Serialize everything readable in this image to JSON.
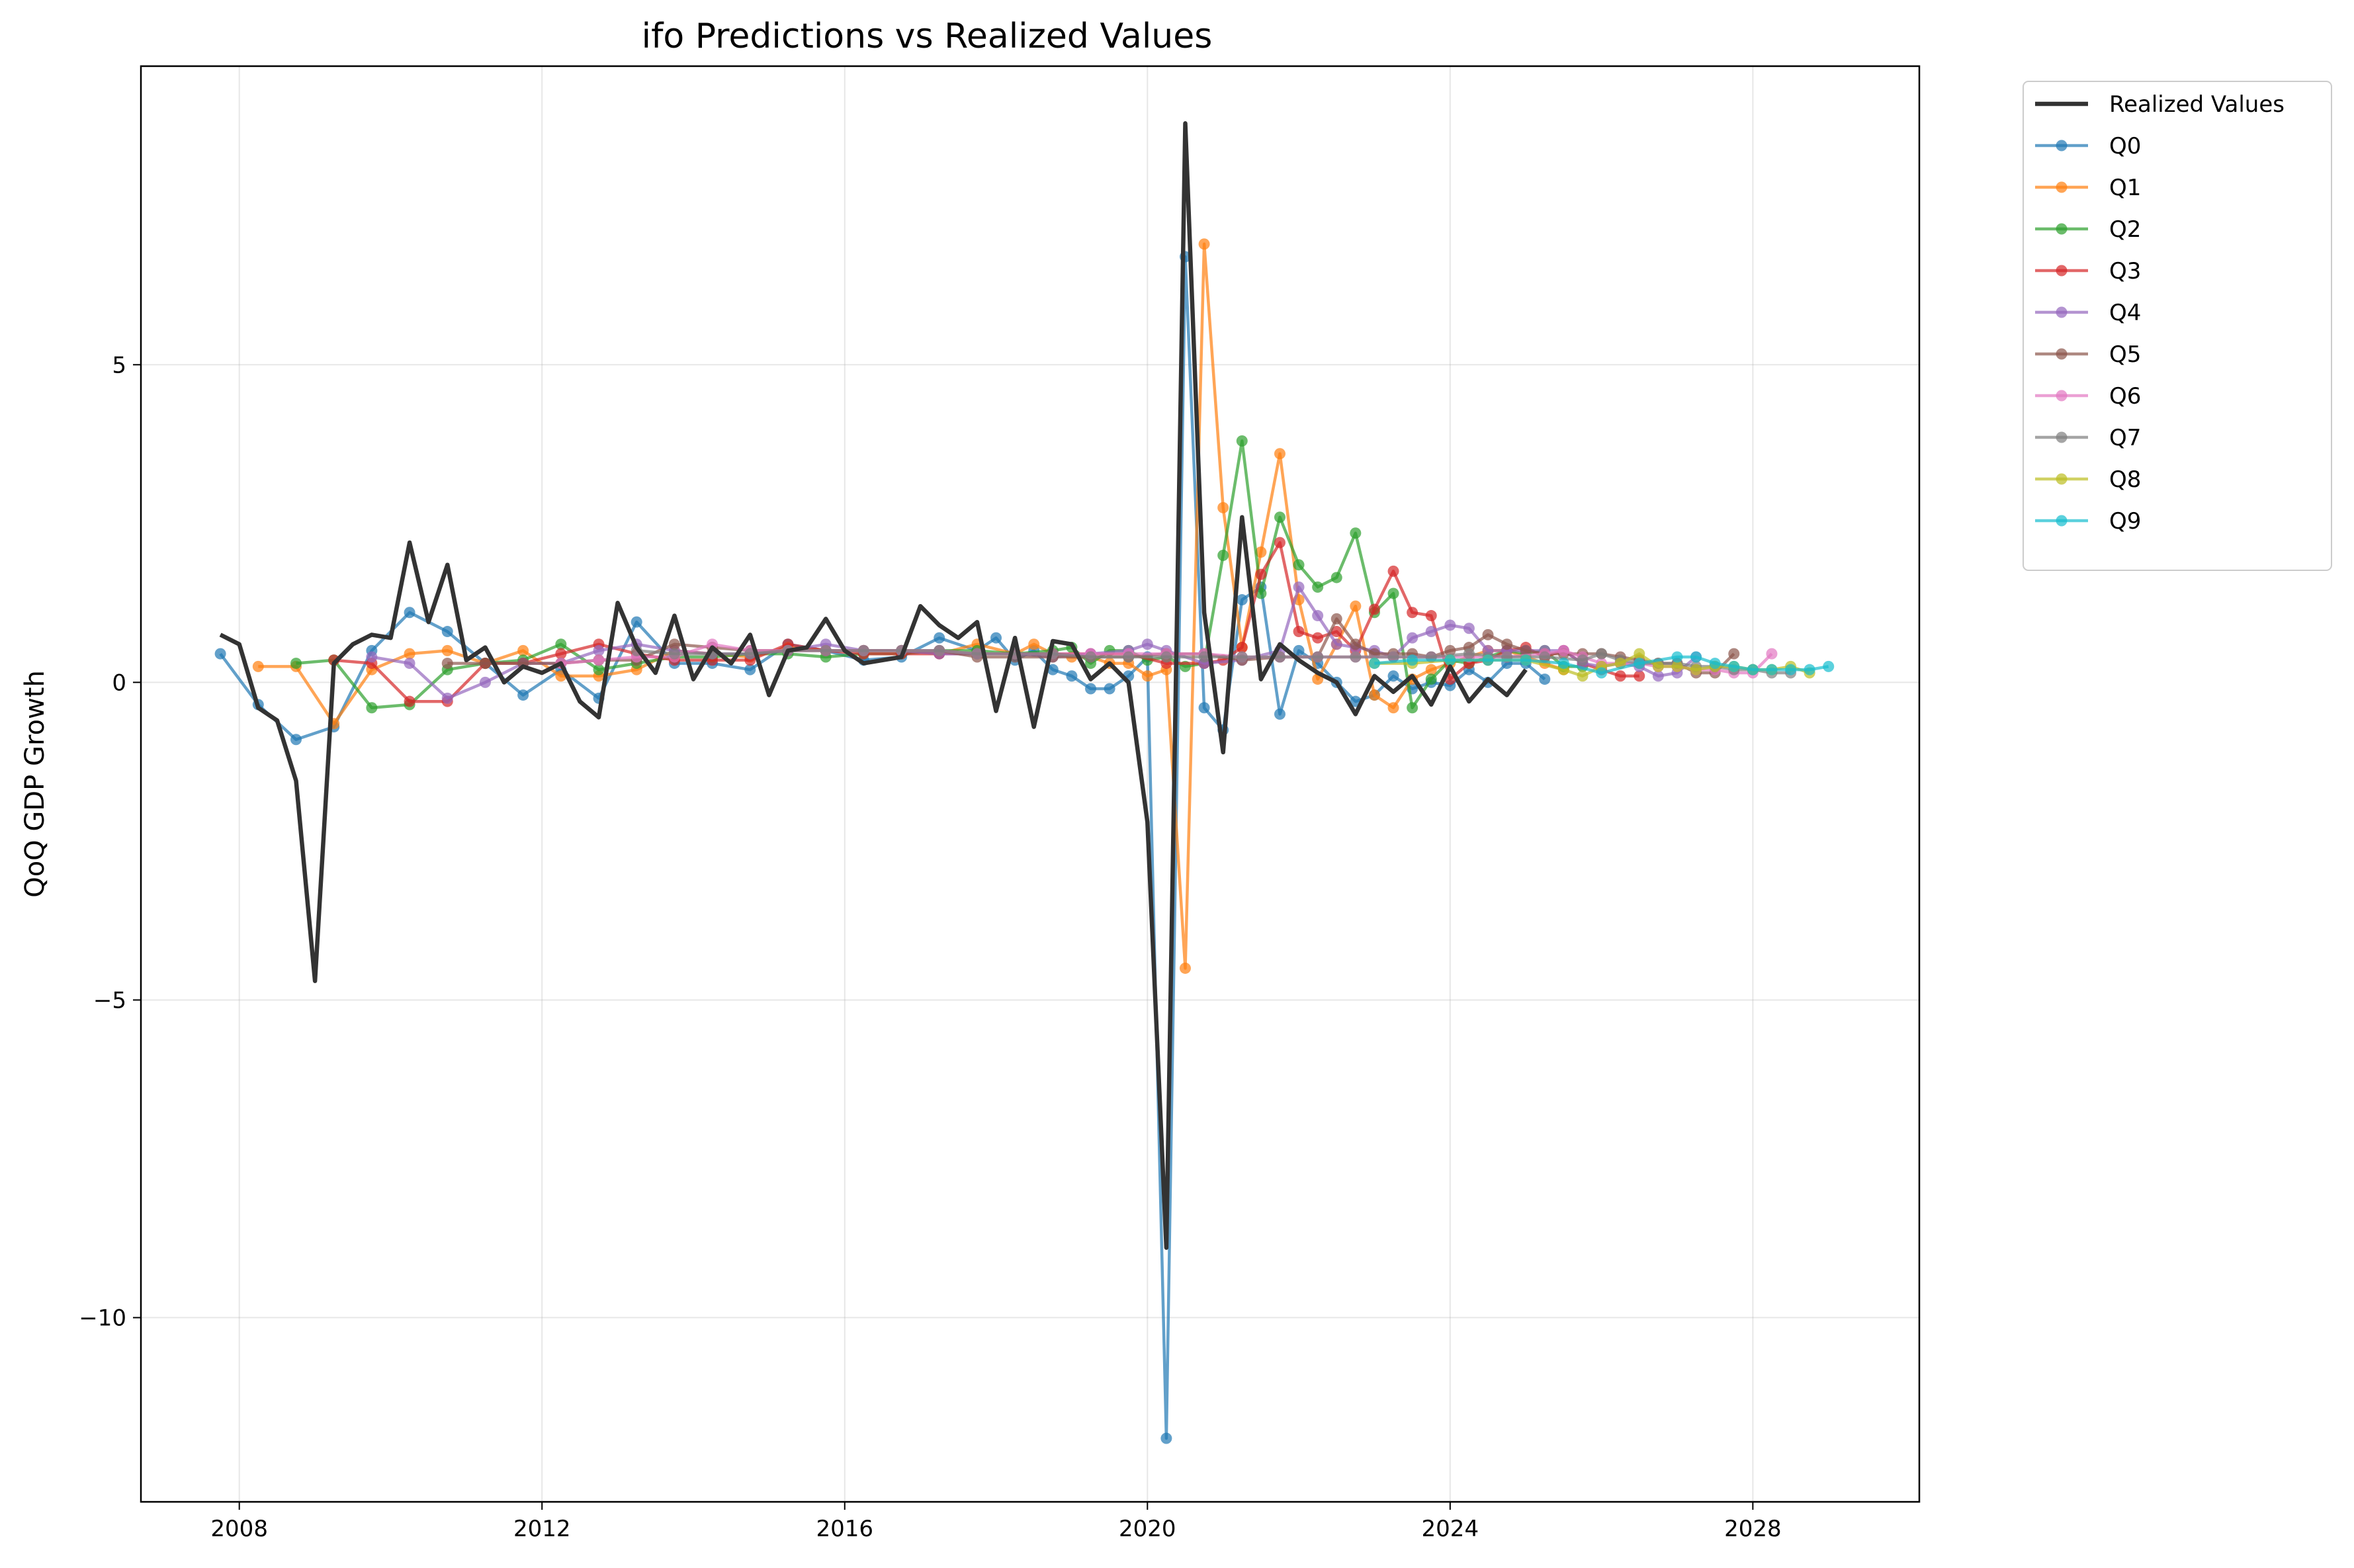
{
  "chart_data": {
    "type": "line",
    "title": "ifo Predictions vs Realized Values",
    "xlabel": "",
    "ylabel": "QoQ GDP Growth",
    "xlim": [
      2006.7,
      2030.2
    ],
    "ylim": [
      -12.9,
      9.7
    ],
    "xticks": [
      2008,
      2012,
      2016,
      2020,
      2024,
      2028
    ],
    "yticks": [
      {
        "value": -10,
        "label": "−10"
      },
      {
        "value": -5,
        "label": "−5"
      },
      {
        "value": 0,
        "label": "0"
      },
      {
        "value": 5,
        "label": "5"
      }
    ],
    "grid": true,
    "legend_position": "outside-top-right",
    "realized": {
      "name": "Realized Values",
      "color": "#333333",
      "x": [
        2007.75,
        2008.0,
        2008.25,
        2008.5,
        2008.75,
        2009.0,
        2009.25,
        2009.5,
        2009.75,
        2010.0,
        2010.25,
        2010.5,
        2010.75,
        2011.0,
        2011.25,
        2011.5,
        2011.75,
        2012.0,
        2012.25,
        2012.5,
        2012.75,
        2013.0,
        2013.25,
        2013.5,
        2013.75,
        2014.0,
        2014.25,
        2014.5,
        2014.75,
        2015.0,
        2015.25,
        2015.5,
        2015.75,
        2016.0,
        2016.25,
        2016.5,
        2016.75,
        2017.0,
        2017.25,
        2017.5,
        2017.75,
        2018.0,
        2018.25,
        2018.5,
        2018.75,
        2019.0,
        2019.25,
        2019.5,
        2019.75,
        2020.0,
        2020.25,
        2020.5,
        2020.75,
        2021.0,
        2021.25,
        2021.5,
        2021.75,
        2022.0,
        2022.25,
        2022.5,
        2022.75,
        2023.0,
        2023.25,
        2023.5,
        2023.75,
        2024.0,
        2024.25,
        2024.5,
        2024.75,
        2025.0
      ],
      "values": [
        0.75,
        0.6,
        -0.4,
        -0.6,
        -1.55,
        -4.7,
        0.3,
        0.6,
        0.75,
        0.7,
        2.2,
        0.95,
        1.85,
        0.35,
        0.55,
        0.0,
        0.25,
        0.15,
        0.3,
        -0.3,
        -0.55,
        1.25,
        0.55,
        0.15,
        1.05,
        0.05,
        0.55,
        0.3,
        0.75,
        -0.2,
        0.5,
        0.55,
        1.0,
        0.5,
        0.3,
        0.35,
        0.4,
        1.2,
        0.9,
        0.7,
        0.95,
        -0.45,
        0.7,
        -0.7,
        0.65,
        0.6,
        0.05,
        0.3,
        0.0,
        -2.2,
        -8.9,
        8.8,
        1.1,
        -1.1,
        2.6,
        0.05,
        0.6,
        0.35,
        0.15,
        0.0,
        -0.5,
        0.1,
        -0.15,
        0.1,
        -0.35,
        0.25,
        -0.3,
        0.05,
        -0.2,
        0.2
      ]
    },
    "series": [
      {
        "name": "Q0",
        "color": "#1f77b4",
        "x": [
          2007.75,
          2008.25,
          2008.75,
          2009.25,
          2009.75,
          2010.25,
          2010.75,
          2011.25,
          2011.75,
          2012.25,
          2012.75,
          2013.25,
          2013.75,
          2014.25,
          2014.75,
          2015.25,
          2015.75,
          2016.25,
          2016.75,
          2017.25,
          2017.75,
          2018.0,
          2018.25,
          2018.5,
          2018.75,
          2019.0,
          2019.25,
          2019.5,
          2019.75,
          2020.0,
          2020.25,
          2020.5,
          2020.75,
          2021.0,
          2021.25,
          2021.5,
          2021.75,
          2022.0,
          2022.25,
          2022.5,
          2022.75,
          2023.0,
          2023.25,
          2023.5,
          2023.75,
          2024.0,
          2024.25,
          2024.5,
          2024.75,
          2025.0,
          2025.25
        ],
        "values": [
          0.45,
          -0.35,
          -0.9,
          -0.7,
          0.5,
          1.1,
          0.8,
          0.3,
          -0.2,
          0.2,
          -0.25,
          0.95,
          0.3,
          0.3,
          0.2,
          0.6,
          0.5,
          0.35,
          0.4,
          0.7,
          0.5,
          0.7,
          0.35,
          0.5,
          0.2,
          0.1,
          -0.1,
          -0.1,
          0.1,
          0.4,
          -11.9,
          6.7,
          -0.4,
          -0.75,
          1.3,
          1.5,
          -0.5,
          0.5,
          0.3,
          0.0,
          -0.3,
          -0.2,
          0.1,
          -0.1,
          0.0,
          -0.05,
          0.2,
          0.0,
          0.3,
          0.3,
          0.05
        ]
      },
      {
        "name": "Q1",
        "color": "#ff7f0e",
        "x": [
          2008.25,
          2008.75,
          2009.25,
          2009.75,
          2010.25,
          2010.75,
          2011.25,
          2011.75,
          2012.25,
          2012.75,
          2013.25,
          2013.75,
          2014.25,
          2014.75,
          2015.25,
          2015.75,
          2016.25,
          2016.75,
          2017.25,
          2017.75,
          2018.25,
          2018.5,
          2018.75,
          2019.0,
          2019.25,
          2019.5,
          2019.75,
          2020.0,
          2020.25,
          2020.5,
          2020.75,
          2021.0,
          2021.25,
          2021.5,
          2021.75,
          2022.0,
          2022.25,
          2022.5,
          2022.75,
          2023.0,
          2023.25,
          2023.5,
          2023.75,
          2024.0,
          2024.25,
          2024.5,
          2024.75,
          2025.0,
          2025.25,
          2025.5
        ],
        "values": [
          0.25,
          0.25,
          -0.65,
          0.2,
          0.45,
          0.5,
          0.3,
          0.5,
          0.1,
          0.1,
          0.2,
          0.5,
          0.45,
          0.4,
          0.55,
          0.5,
          0.5,
          0.5,
          0.45,
          0.6,
          0.45,
          0.6,
          0.45,
          0.4,
          0.4,
          0.3,
          0.3,
          0.1,
          0.2,
          -4.5,
          6.9,
          2.75,
          0.55,
          2.05,
          3.6,
          1.3,
          0.05,
          0.6,
          1.2,
          -0.2,
          -0.4,
          0.05,
          0.2,
          0.3,
          0.4,
          0.5,
          0.5,
          0.4,
          0.3,
          0.2
        ]
      },
      {
        "name": "Q2",
        "color": "#2ca02c",
        "x": [
          2008.75,
          2009.25,
          2009.75,
          2010.25,
          2010.75,
          2011.25,
          2011.75,
          2012.25,
          2012.75,
          2013.25,
          2013.75,
          2014.25,
          2014.75,
          2015.25,
          2015.75,
          2016.25,
          2016.75,
          2017.25,
          2017.75,
          2018.25,
          2018.75,
          2019.0,
          2019.25,
          2019.5,
          2019.75,
          2020.0,
          2020.25,
          2020.5,
          2020.75,
          2021.0,
          2021.25,
          2021.5,
          2021.75,
          2022.0,
          2022.25,
          2022.5,
          2022.75,
          2023.0,
          2023.25,
          2023.5,
          2023.75,
          2024.0,
          2024.25,
          2024.5,
          2024.75,
          2025.0,
          2025.25,
          2025.5,
          2025.75
        ],
        "values": [
          0.3,
          0.35,
          -0.4,
          -0.35,
          0.2,
          0.3,
          0.35,
          0.6,
          0.2,
          0.3,
          0.4,
          0.4,
          0.45,
          0.45,
          0.4,
          0.45,
          0.45,
          0.5,
          0.5,
          0.45,
          0.5,
          0.55,
          0.3,
          0.5,
          0.5,
          0.35,
          0.4,
          0.25,
          0.3,
          2.0,
          3.8,
          1.4,
          2.6,
          1.85,
          1.5,
          1.65,
          2.35,
          1.1,
          1.4,
          -0.4,
          0.05,
          0.35,
          0.3,
          0.4,
          0.5,
          0.45,
          0.5,
          0.25,
          0.25
        ]
      },
      {
        "name": "Q3",
        "color": "#d62728",
        "x": [
          2009.25,
          2009.75,
          2010.25,
          2010.75,
          2011.25,
          2011.75,
          2012.25,
          2012.75,
          2013.25,
          2013.75,
          2014.25,
          2014.75,
          2015.25,
          2015.75,
          2016.25,
          2016.75,
          2017.25,
          2017.75,
          2018.25,
          2018.75,
          2019.25,
          2019.75,
          2020.25,
          2020.75,
          2021.0,
          2021.25,
          2021.5,
          2021.75,
          2022.0,
          2022.25,
          2022.5,
          2022.75,
          2023.0,
          2023.25,
          2023.5,
          2023.75,
          2024.0,
          2024.25,
          2024.5,
          2024.75,
          2025.0,
          2025.25,
          2025.5,
          2025.75,
          2026.0,
          2026.25,
          2026.5
        ],
        "values": [
          0.35,
          0.3,
          -0.3,
          -0.3,
          0.3,
          0.3,
          0.45,
          0.6,
          0.45,
          0.35,
          0.35,
          0.35,
          0.6,
          0.5,
          0.45,
          0.45,
          0.45,
          0.45,
          0.45,
          0.45,
          0.45,
          0.45,
          0.3,
          0.3,
          0.35,
          0.55,
          1.7,
          2.2,
          0.8,
          0.7,
          0.8,
          0.5,
          1.15,
          1.75,
          1.1,
          1.05,
          0.05,
          0.3,
          0.35,
          0.5,
          0.55,
          0.4,
          0.5,
          0.3,
          0.2,
          0.1,
          0.1
        ]
      },
      {
        "name": "Q4",
        "color": "#9467bd",
        "x": [
          2009.75,
          2010.25,
          2010.75,
          2011.25,
          2011.75,
          2012.25,
          2012.75,
          2013.25,
          2013.75,
          2014.25,
          2014.75,
          2015.25,
          2015.75,
          2016.25,
          2016.75,
          2017.25,
          2017.75,
          2018.25,
          2018.75,
          2019.25,
          2019.75,
          2020.0,
          2020.25,
          2020.75,
          2021.25,
          2021.75,
          2022.0,
          2022.25,
          2022.5,
          2022.75,
          2023.0,
          2023.25,
          2023.5,
          2023.75,
          2024.0,
          2024.25,
          2024.5,
          2024.75,
          2025.0,
          2025.25,
          2025.5,
          2025.75,
          2026.0,
          2026.25,
          2026.5,
          2026.75,
          2027.0,
          2027.25
        ],
        "values": [
          0.4,
          0.3,
          -0.25,
          0.0,
          0.3,
          0.3,
          0.5,
          0.6,
          0.5,
          0.45,
          0.45,
          0.5,
          0.6,
          0.5,
          0.5,
          0.45,
          0.45,
          0.45,
          0.4,
          0.45,
          0.5,
          0.6,
          0.5,
          0.3,
          0.35,
          0.5,
          1.5,
          1.05,
          0.6,
          0.55,
          0.5,
          0.4,
          0.7,
          0.8,
          0.9,
          0.85,
          0.5,
          0.5,
          0.5,
          0.5,
          0.5,
          0.3,
          0.25,
          0.3,
          0.25,
          0.1,
          0.15,
          0.4
        ]
      },
      {
        "name": "Q5",
        "color": "#8c564b",
        "x": [
          2010.75,
          2011.25,
          2011.75,
          2012.25,
          2012.75,
          2013.25,
          2013.75,
          2014.25,
          2014.75,
          2015.25,
          2015.75,
          2016.25,
          2016.75,
          2017.25,
          2017.75,
          2018.25,
          2018.75,
          2019.25,
          2019.75,
          2020.25,
          2020.75,
          2021.25,
          2021.75,
          2022.25,
          2022.5,
          2022.75,
          2023.0,
          2023.25,
          2023.5,
          2023.75,
          2024.0,
          2024.25,
          2024.5,
          2024.75,
          2025.0,
          2025.25,
          2025.5,
          2025.75,
          2026.0,
          2026.25,
          2026.5,
          2026.75,
          2027.0,
          2027.25,
          2027.5,
          2027.75
        ],
        "values": [
          0.3,
          0.3,
          0.3,
          0.3,
          0.35,
          0.35,
          0.6,
          0.55,
          0.5,
          0.5,
          0.5,
          0.5,
          0.5,
          0.5,
          0.4,
          0.4,
          0.4,
          0.4,
          0.4,
          0.45,
          0.45,
          0.35,
          0.4,
          0.4,
          1.0,
          0.6,
          0.45,
          0.45,
          0.45,
          0.4,
          0.5,
          0.55,
          0.75,
          0.6,
          0.5,
          0.45,
          0.45,
          0.45,
          0.45,
          0.4,
          0.35,
          0.3,
          0.3,
          0.15,
          0.15,
          0.45
        ]
      },
      {
        "name": "Q6",
        "color": "#e377c2",
        "x": [
          2012.25,
          2012.75,
          2013.25,
          2013.75,
          2014.25,
          2014.75,
          2015.25,
          2015.75,
          2016.25,
          2016.75,
          2017.25,
          2017.75,
          2018.25,
          2018.75,
          2019.25,
          2019.75,
          2020.25,
          2020.75,
          2021.25,
          2021.75,
          2022.25,
          2022.75,
          2023.25,
          2023.75,
          2024.25,
          2024.75,
          2025.25,
          2025.5,
          2025.75,
          2026.0,
          2026.25,
          2026.5,
          2026.75,
          2027.0,
          2027.25,
          2027.5,
          2027.75,
          2028.0,
          2028.25
        ],
        "values": [
          0.3,
          0.35,
          0.4,
          0.4,
          0.6,
          0.5,
          0.5,
          0.5,
          0.5,
          0.5,
          0.5,
          0.45,
          0.45,
          0.45,
          0.45,
          0.45,
          0.45,
          0.45,
          0.4,
          0.4,
          0.4,
          0.4,
          0.4,
          0.4,
          0.4,
          0.4,
          0.45,
          0.5,
          0.4,
          0.3,
          0.3,
          0.3,
          0.25,
          0.25,
          0.2,
          0.2,
          0.15,
          0.15,
          0.45
        ]
      },
      {
        "name": "Q7",
        "color": "#7f7f7f",
        "x": [
          2013.25,
          2013.75,
          2014.25,
          2014.75,
          2015.25,
          2015.75,
          2016.25,
          2016.75,
          2017.25,
          2017.75,
          2018.25,
          2018.75,
          2019.25,
          2019.75,
          2020.25,
          2020.75,
          2021.25,
          2021.75,
          2022.25,
          2022.75,
          2023.25,
          2023.75,
          2024.25,
          2024.75,
          2025.25,
          2025.75,
          2026.0,
          2026.25,
          2026.5,
          2026.75,
          2027.0,
          2027.25,
          2027.5,
          2027.75,
          2028.0,
          2028.25,
          2028.5
        ],
        "values": [
          0.5,
          0.45,
          0.45,
          0.45,
          0.5,
          0.5,
          0.5,
          0.5,
          0.5,
          0.45,
          0.45,
          0.45,
          0.4,
          0.4,
          0.4,
          0.4,
          0.4,
          0.4,
          0.4,
          0.4,
          0.4,
          0.4,
          0.45,
          0.4,
          0.4,
          0.35,
          0.45,
          0.35,
          0.3,
          0.3,
          0.3,
          0.25,
          0.25,
          0.2,
          0.2,
          0.15,
          0.15
        ]
      },
      {
        "name": "Q8",
        "color": "#bcbd22",
        "x": [
          2023.0,
          2023.5,
          2024.0,
          2024.5,
          2025.0,
          2025.5,
          2025.75,
          2026.0,
          2026.25,
          2026.5,
          2026.75,
          2027.0,
          2027.25,
          2027.5,
          2027.75,
          2028.0,
          2028.25,
          2028.5,
          2028.75
        ],
        "values": [
          0.3,
          0.3,
          0.35,
          0.35,
          0.35,
          0.2,
          0.1,
          0.25,
          0.3,
          0.45,
          0.25,
          0.25,
          0.2,
          0.25,
          0.25,
          0.2,
          0.2,
          0.25,
          0.15
        ]
      },
      {
        "name": "Q9",
        "color": "#17becf",
        "x": [
          2023.0,
          2023.5,
          2024.0,
          2024.5,
          2025.0,
          2025.5,
          2026.0,
          2026.5,
          2027.0,
          2027.25,
          2027.5,
          2027.75,
          2028.0,
          2028.25,
          2028.5,
          2028.75,
          2029.0
        ],
        "values": [
          0.3,
          0.35,
          0.35,
          0.35,
          0.35,
          0.3,
          0.15,
          0.3,
          0.4,
          0.4,
          0.3,
          0.25,
          0.2,
          0.2,
          0.2,
          0.2,
          0.25
        ]
      }
    ]
  }
}
